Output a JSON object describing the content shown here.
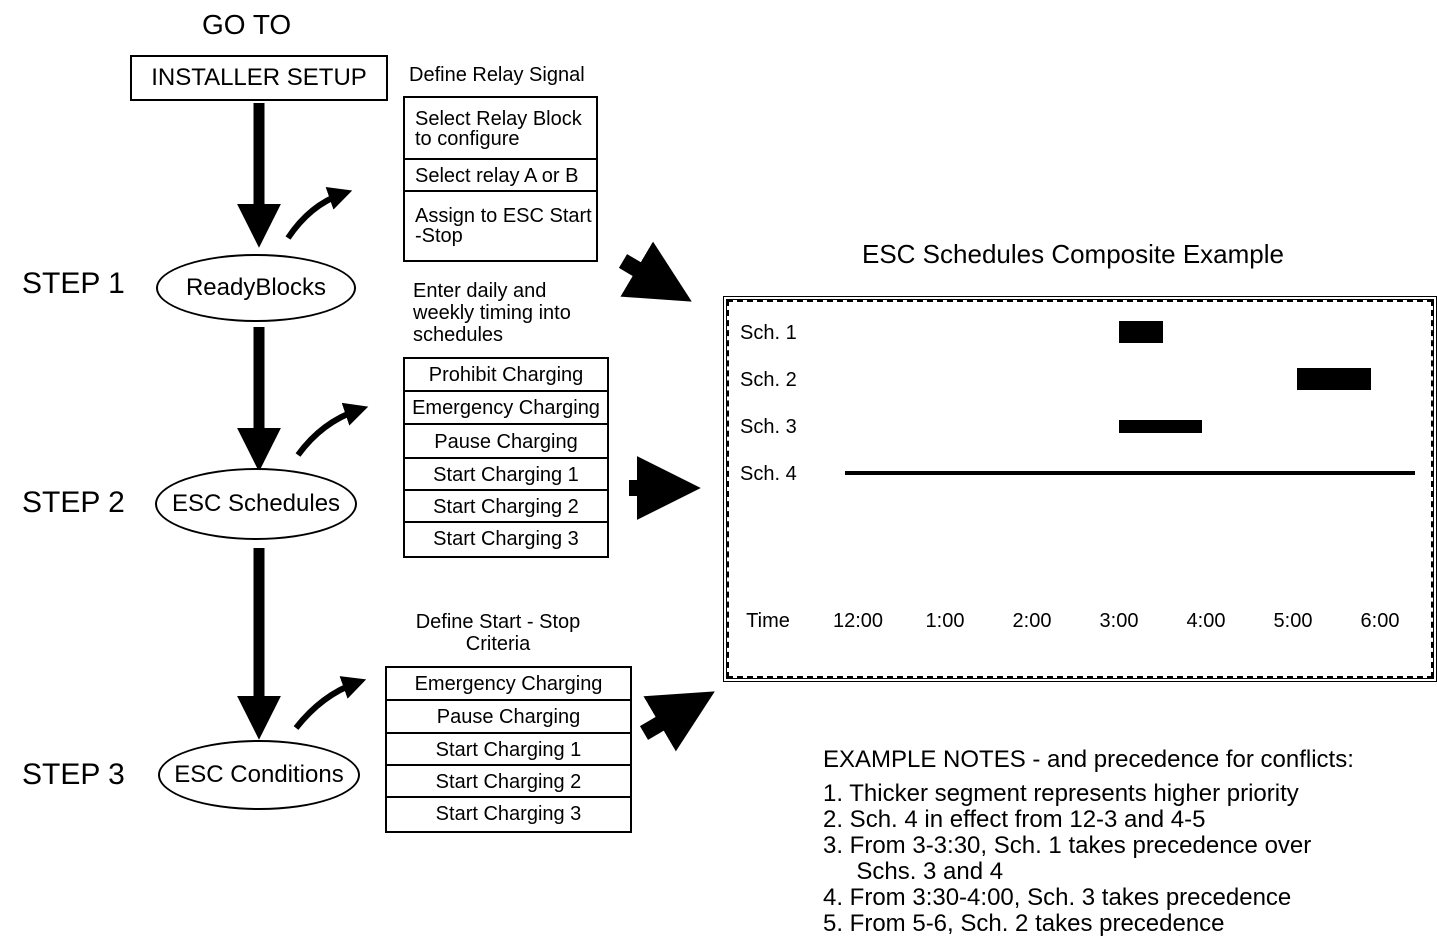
{
  "goto_label": "GO TO",
  "installer_setup": "INSTALLER SETUP",
  "steps": [
    {
      "label": "STEP 1",
      "node": "ReadyBlocks"
    },
    {
      "label": "STEP 2",
      "node": "ESC Schedules"
    },
    {
      "label": "STEP 3",
      "node": "ESC Conditions"
    }
  ],
  "relay": {
    "heading": "Define Relay Signal",
    "items": [
      "Select Relay Block to configure",
      "Select relay A or B",
      "Assign to ESC Start -Stop"
    ]
  },
  "schedules": {
    "heading": "Enter daily and weekly timing into schedules",
    "items": [
      "Prohibit Charging",
      "Emergency Charging",
      "Pause Charging",
      "Start Charging 1",
      "Start Charging 2",
      "Start Charging 3"
    ]
  },
  "criteria": {
    "heading": "Define Start - Stop Criteria",
    "items": [
      "Emergency Charging",
      "Pause Charging",
      "Start Charging 1",
      "Start Charging 2",
      "Start Charging  3"
    ]
  },
  "chart_data": {
    "type": "gantt",
    "title": "ESC Schedules Composite Example",
    "xlabel": "Time",
    "x_ticks": [
      "12:00",
      "1:00",
      "2:00",
      "3:00",
      "4:00",
      "5:00",
      "6:00"
    ],
    "x_unit": "hours after 12:00",
    "xlim": [
      0,
      6.4
    ],
    "rows": [
      {
        "label": "Sch. 1",
        "segments": [
          {
            "start": 3.0,
            "end": 3.5,
            "weight": "thick"
          }
        ]
      },
      {
        "label": "Sch. 2",
        "segments": [
          {
            "start": 5.05,
            "end": 5.9,
            "weight": "thick"
          }
        ]
      },
      {
        "label": "Sch. 3",
        "segments": [
          {
            "start": 3.0,
            "end": 3.95,
            "weight": "medium"
          }
        ]
      },
      {
        "label": "Sch. 4",
        "segments": [
          {
            "start": -0.15,
            "end": 6.4,
            "weight": "thin"
          }
        ]
      }
    ]
  },
  "notes": {
    "heading": "EXAMPLE NOTES - and precedence for conflicts:",
    "items": [
      "1. Thicker segment represents higher priority",
      "2. Sch. 4 in effect from 12-3 and 4-5",
      "3. From 3-3:30, Sch. 1 takes precedence over",
      "     Schs. 3 and 4",
      "4. From 3:30-4:00, Sch. 3 takes precedence",
      "5. From 5-6, Sch. 2 takes precedence"
    ]
  }
}
